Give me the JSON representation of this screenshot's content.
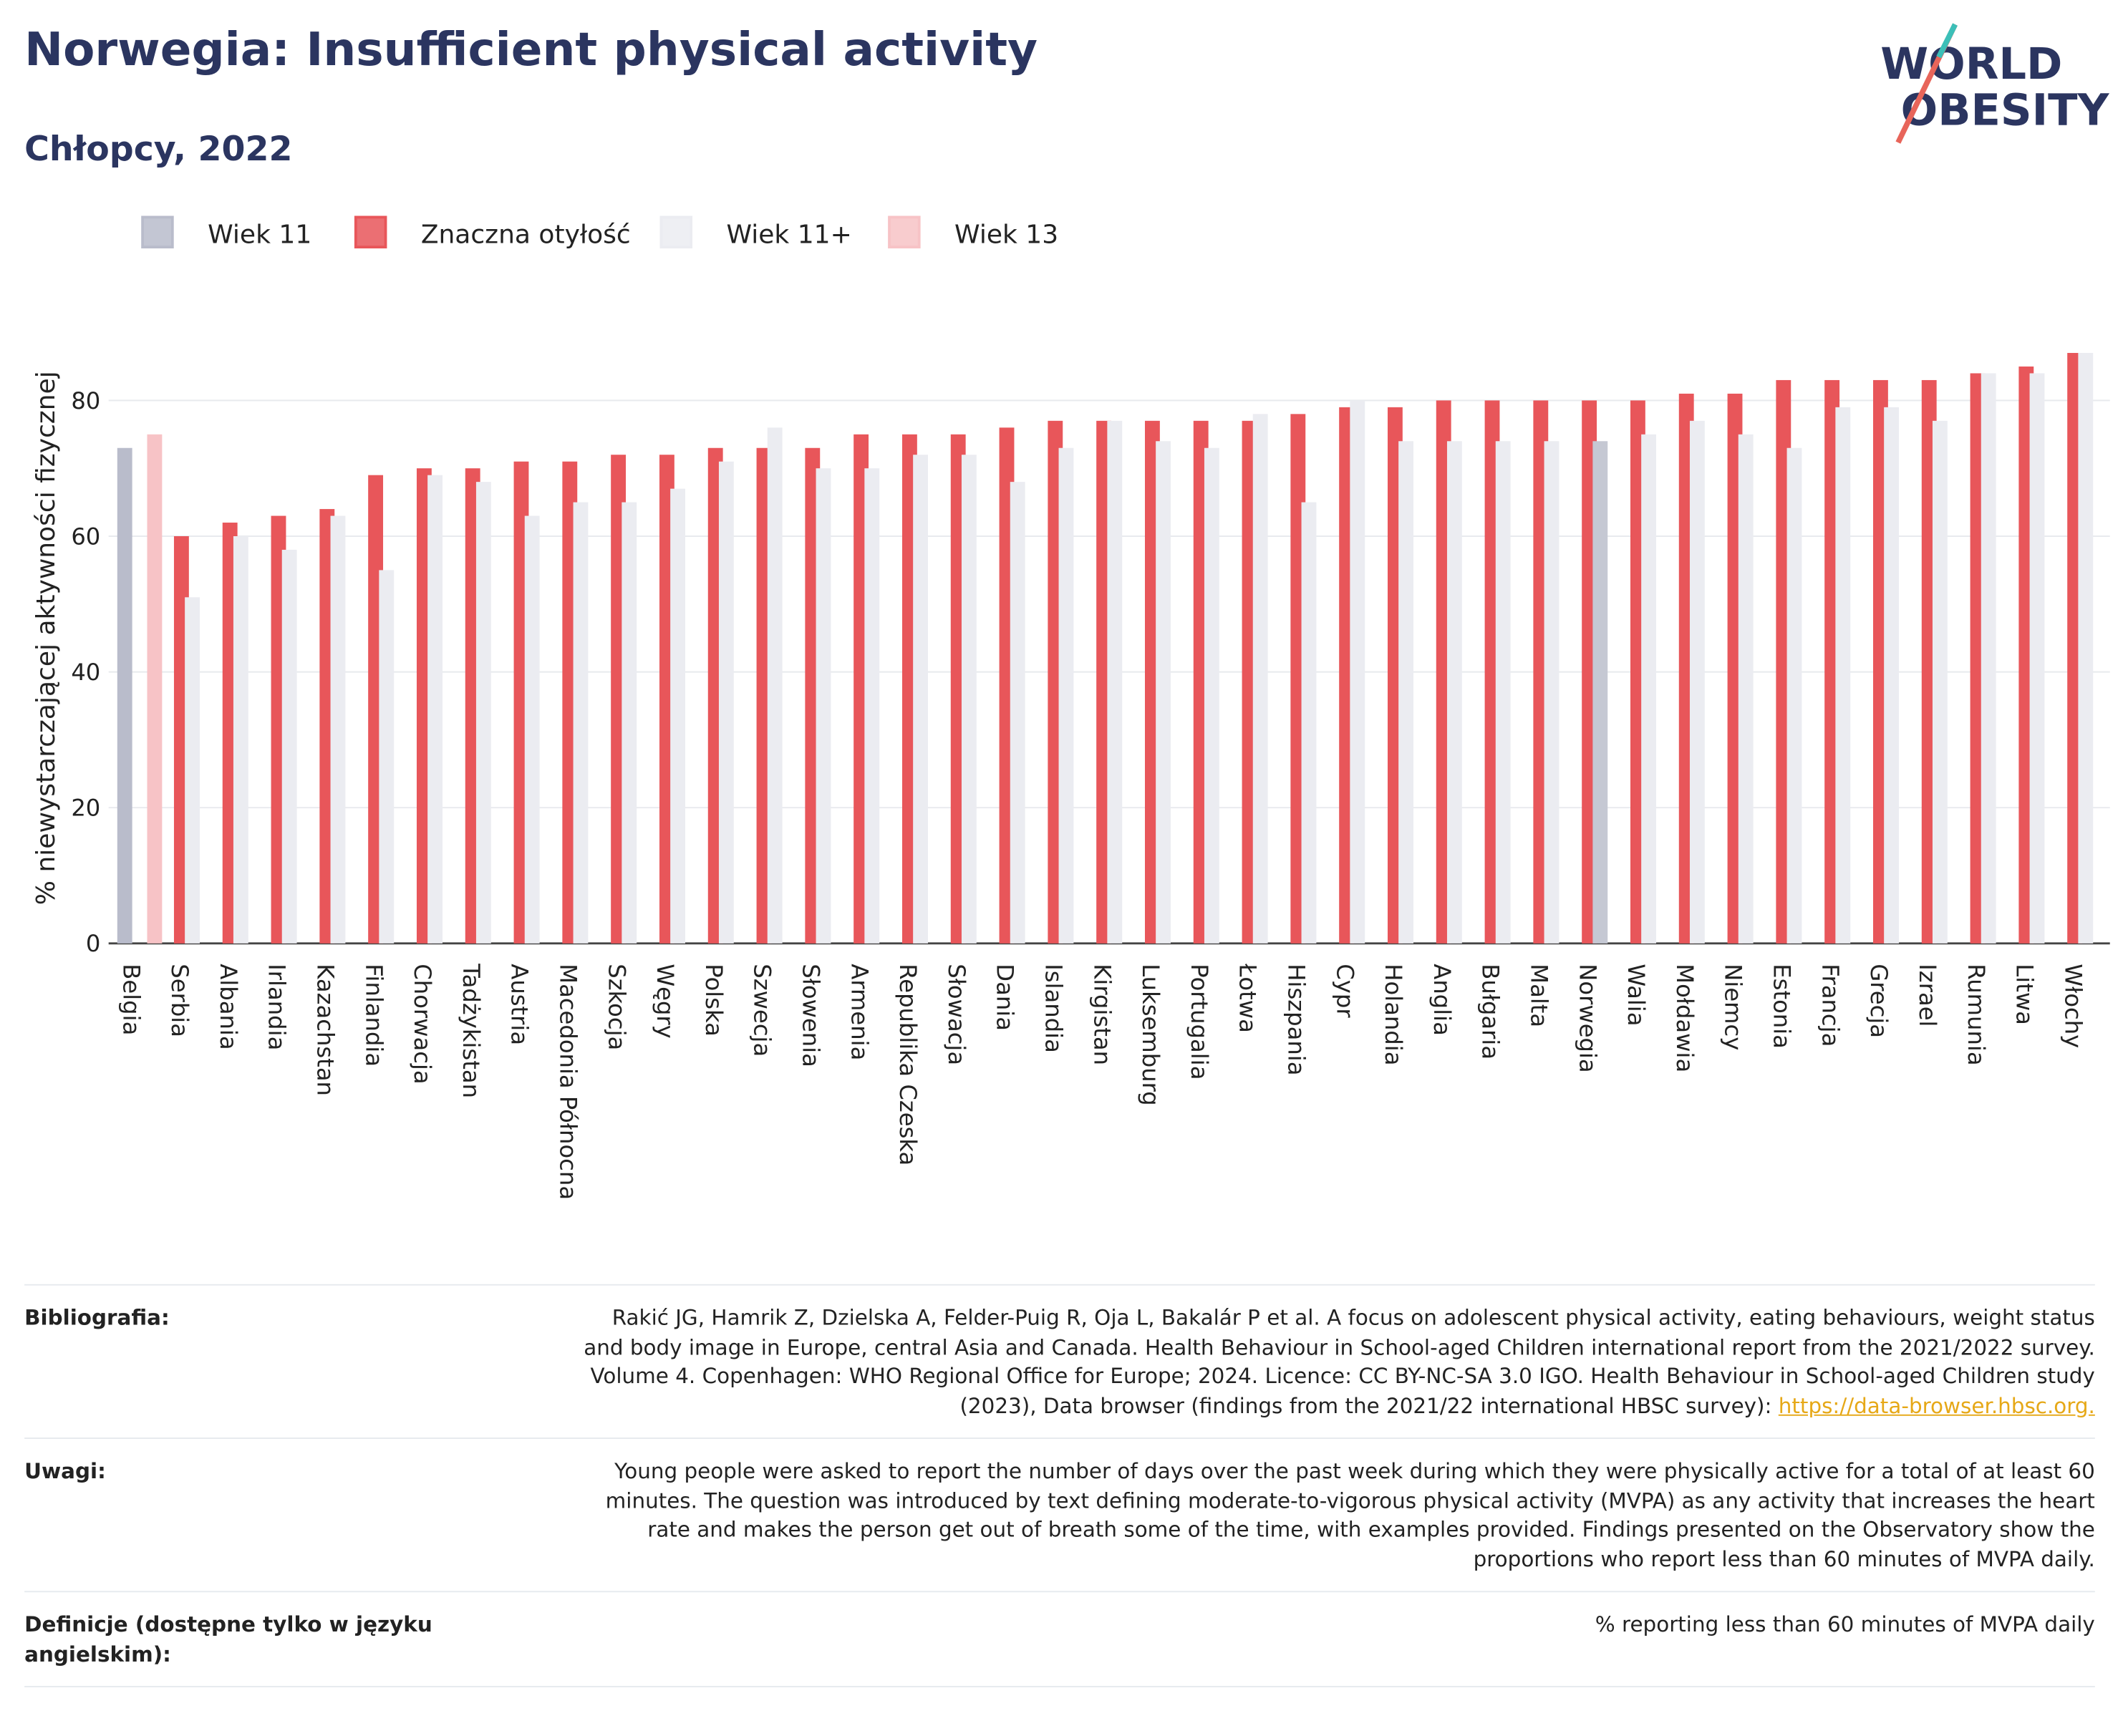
{
  "chart_data": {
    "type": "bar",
    "title": "Norwegia: Insufficient physical activity",
    "subtitle": "Chłopcy, 2022",
    "logo": [
      "WORLD",
      "OBESITY"
    ],
    "y_label": "% niewystarczającej aktywności fizycznej",
    "categories": [
      "Belgia",
      "Serbia",
      "Albania",
      "Irlandia",
      "Kazachstan",
      "Finlandia",
      "Chorwacja",
      "Tadżykistan",
      "Austria",
      "Macedonia Północna",
      "Szkocja",
      "Węgry",
      "Polska",
      "Szwecja",
      "Słowenia",
      "Armenia",
      "Republika Czeska",
      "Słowacja",
      "Dania",
      "Islandia",
      "Kirgistan",
      "Luksemburg",
      "Portugalia",
      "Łotwa",
      "Hiszpania",
      "Cypr",
      "Holandia",
      "Anglia",
      "Bułgaria",
      "Malta",
      "Norwegia",
      "Walia",
      "Mołdawia",
      "Niemcy",
      "Estonia",
      "Francja",
      "Grecja",
      "Izrael",
      "Rumunia",
      "Litwa",
      "Włochy"
    ],
    "series": [
      {
        "name": "Wiek 11",
        "color": "#b9bccb",
        "values": [
          73,
          null,
          null,
          null,
          null,
          null,
          null,
          null,
          null,
          null,
          null,
          null,
          null,
          null,
          null,
          null,
          null,
          null,
          null,
          null,
          null,
          null,
          null,
          null,
          null,
          null,
          null,
          null,
          null,
          null,
          null,
          null,
          null,
          null,
          null,
          null,
          null,
          null,
          null,
          null,
          null
        ]
      },
      {
        "name": "Znaczna otyłość",
        "color": "#e8565a",
        "values": [
          null,
          60,
          62,
          63,
          64,
          69,
          70,
          70,
          71,
          71,
          72,
          72,
          73,
          73,
          73,
          75,
          75,
          75,
          76,
          77,
          77,
          77,
          77,
          77,
          78,
          79,
          79,
          80,
          80,
          80,
          80,
          80,
          81,
          81,
          83,
          83,
          83,
          83,
          84,
          85,
          87
        ]
      },
      {
        "name": "Wiek 11+",
        "color": "#ebecf1",
        "values": [
          null,
          51,
          60,
          58,
          63,
          55,
          69,
          68,
          63,
          65,
          65,
          67,
          71,
          76,
          70,
          70,
          72,
          72,
          68,
          73,
          77,
          74,
          73,
          78,
          65,
          80,
          74,
          74,
          74,
          74,
          74,
          75,
          77,
          75,
          73,
          79,
          79,
          77,
          84,
          84,
          87
        ]
      },
      {
        "name": "Wiek 13",
        "color": "#f7c3c6",
        "values": [
          75,
          null,
          null,
          null,
          null,
          null,
          null,
          null,
          null,
          null,
          null,
          null,
          null,
          null,
          null,
          null,
          null,
          null,
          null,
          null,
          null,
          null,
          null,
          null,
          null,
          null,
          null,
          null,
          null,
          null,
          null,
          null,
          null,
          null,
          null,
          null,
          null,
          null,
          null,
          null,
          null
        ]
      }
    ],
    "highlight": {
      "series": 2,
      "index": 30,
      "color": "#c5c8d3"
    },
    "ylim": [
      0,
      90
    ],
    "yticks": [
      0,
      20,
      40,
      60,
      80
    ],
    "grid": true
  },
  "footer": {
    "rows": [
      {
        "label": "Bibliografia:",
        "text": "Rakić JG, Hamrik Z, Dzielska A, Felder-Puig R, Oja L, Bakalár P et al. A focus on adolescent physical activity, eating behaviours, weight status and body image in Europe, central Asia and Canada. Health Behaviour in School-aged Children international report from the 2021/2022 survey. Volume 4. Copenhagen: WHO Regional Office for Europe; 2024. Licence: CC BY-NC-SA 3.0 IGO. Health Behaviour in School-aged Children study (2023), Data browser (findings from the 2021/22 international HBSC survey): ",
        "link": "https://data-browser.hbsc.org."
      },
      {
        "label": "Uwagi:",
        "text": "Young people were asked to report the number of days over the past week during which they were physically active for a total of at least 60 minutes. The question was introduced by text defining moderate-to-vigorous physical activity (MVPA) as any activity that increases the heart rate and makes the person get out of breath some of the time, with examples provided. Findings presented on the Observatory show the proportions who report less than 60 minutes of MVPA daily."
      },
      {
        "label": "Definicje (dostępne tylko w języku angielskim):",
        "text": "% reporting less than 60 minutes of MVPA daily"
      }
    ]
  }
}
